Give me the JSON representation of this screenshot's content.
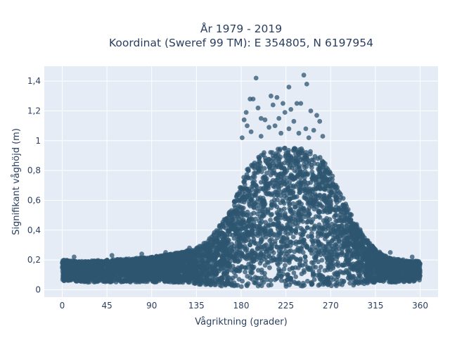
{
  "chart_data": {
    "type": "scatter",
    "title_line1": "År 1979 - 2019",
    "title_line2": "Koordinat (Sweref 99 TM): E 354805, N 6197954",
    "xlabel": "Vågriktning (grader)",
    "ylabel": "Signifikant våghöjd (m)",
    "xlim": [
      -18,
      378
    ],
    "ylim": [
      -0.05,
      1.5
    ],
    "x_ticks": [
      0,
      45,
      90,
      135,
      180,
      225,
      270,
      315,
      360
    ],
    "x_tick_labels": [
      "0",
      "45",
      "90",
      "135",
      "180",
      "225",
      "270",
      "315",
      "360"
    ],
    "y_ticks": [
      0,
      0.2,
      0.4,
      0.6,
      0.8,
      1.0,
      1.2,
      1.4
    ],
    "y_tick_labels": [
      "0",
      "0,2",
      "0,4",
      "0,6",
      "0,8",
      "1",
      "1,2",
      "1,4"
    ],
    "grid": true,
    "colors": {
      "marker": "#2e5670",
      "plot_background": "#e5ecf6",
      "grid": "#ffffff",
      "text": "#2a3f5f"
    },
    "envelope": {
      "x": [
        0,
        20,
        45,
        70,
        90,
        110,
        130,
        145,
        155,
        165,
        175,
        185,
        195,
        205,
        215,
        225,
        235,
        245,
        255,
        265,
        275,
        285,
        295,
        305,
        315,
        330,
        345,
        360
      ],
      "y_max": [
        0.2,
        0.19,
        0.2,
        0.21,
        0.22,
        0.24,
        0.27,
        0.32,
        0.4,
        0.5,
        0.62,
        0.8,
        0.88,
        0.93,
        0.95,
        0.96,
        0.96,
        0.95,
        0.93,
        0.86,
        0.72,
        0.58,
        0.45,
        0.35,
        0.27,
        0.21,
        0.2,
        0.19
      ],
      "y_min": [
        0.06,
        0.05,
        0.05,
        0.05,
        0.05,
        0.05,
        0.04,
        0.03,
        0.03,
        0.02,
        0.02,
        0.02,
        0.02,
        0.02,
        0.02,
        0.02,
        0.02,
        0.02,
        0.02,
        0.02,
        0.02,
        0.03,
        0.03,
        0.04,
        0.05,
        0.05,
        0.05,
        0.06
      ]
    },
    "outliers": [
      {
        "x": 195,
        "y": 1.42
      },
      {
        "x": 243,
        "y": 1.44
      },
      {
        "x": 228,
        "y": 1.36
      },
      {
        "x": 246,
        "y": 1.38
      },
      {
        "x": 189,
        "y": 1.28
      },
      {
        "x": 192,
        "y": 1.28
      },
      {
        "x": 210,
        "y": 1.3
      },
      {
        "x": 216,
        "y": 1.29
      },
      {
        "x": 222,
        "y": 1.25
      },
      {
        "x": 236,
        "y": 1.25
      },
      {
        "x": 240,
        "y": 1.25
      },
      {
        "x": 197,
        "y": 1.22
      },
      {
        "x": 212,
        "y": 1.24
      },
      {
        "x": 230,
        "y": 1.21
      },
      {
        "x": 250,
        "y": 1.2
      },
      {
        "x": 185,
        "y": 1.19
      },
      {
        "x": 224,
        "y": 1.19
      },
      {
        "x": 256,
        "y": 1.17
      },
      {
        "x": 183,
        "y": 1.14
      },
      {
        "x": 200,
        "y": 1.15
      },
      {
        "x": 204,
        "y": 1.14
      },
      {
        "x": 218,
        "y": 1.15
      },
      {
        "x": 233,
        "y": 1.13
      },
      {
        "x": 259,
        "y": 1.13
      },
      {
        "x": 186,
        "y": 1.1
      },
      {
        "x": 208,
        "y": 1.09
      },
      {
        "x": 214,
        "y": 1.1
      },
      {
        "x": 228,
        "y": 1.08
      },
      {
        "x": 245,
        "y": 1.08
      },
      {
        "x": 253,
        "y": 1.07
      },
      {
        "x": 190,
        "y": 1.06
      },
      {
        "x": 220,
        "y": 1.05
      },
      {
        "x": 238,
        "y": 1.05
      },
      {
        "x": 262,
        "y": 1.03
      },
      {
        "x": 181,
        "y": 1.02
      },
      {
        "x": 200,
        "y": 1.03
      },
      {
        "x": 248,
        "y": 1.02
      },
      {
        "x": 12,
        "y": 0.22
      },
      {
        "x": 50,
        "y": 0.23
      },
      {
        "x": 80,
        "y": 0.24
      },
      {
        "x": 104,
        "y": 0.25
      },
      {
        "x": 128,
        "y": 0.28
      },
      {
        "x": 315,
        "y": 0.27
      },
      {
        "x": 330,
        "y": 0.25
      },
      {
        "x": 352,
        "y": 0.22
      }
    ]
  }
}
